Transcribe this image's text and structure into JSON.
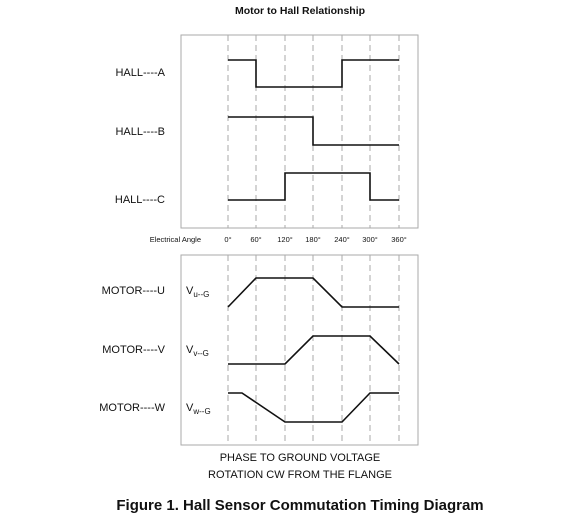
{
  "title": "Motor to Hall Relationship",
  "hall_labels": [
    "HALL----A",
    "HALL----B",
    "HALL----C"
  ],
  "angle_axis": {
    "label": "Electrical Angle",
    "ticks": [
      "0°",
      "60°",
      "120°",
      "180°",
      "240°",
      "300°",
      "360°"
    ]
  },
  "motor_labels": [
    "MOTOR----U",
    "MOTOR----V",
    "MOTOR----W"
  ],
  "voltage_labels": [
    {
      "main": "V",
      "sub": "u--G"
    },
    {
      "main": "V",
      "sub": "v--G"
    },
    {
      "main": "V",
      "sub": "w--G"
    }
  ],
  "bottom_caption": [
    "PHASE TO GROUND VOLTAGE",
    "ROTATION CW FROM THE FLANGE"
  ],
  "figure_caption": "Figure 1. Hall Sensor Commutation Timing Diagram"
}
